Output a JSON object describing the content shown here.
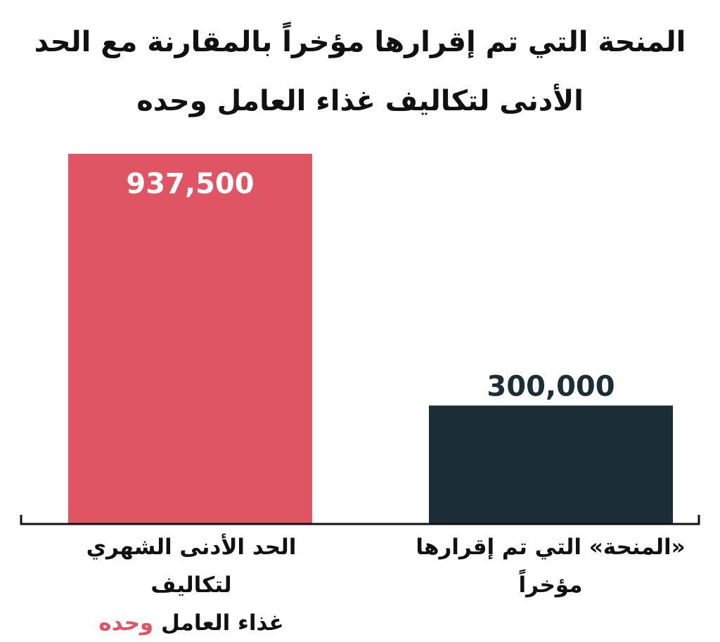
{
  "title": {
    "line1": "المنحة التي تم إقرارها مؤخراً بالمقارنة مع الحد",
    "line2": "الأدنى لتكاليف غذاء العامل وحده"
  },
  "colors": {
    "bar_min_wage": "#e05563",
    "bar_grant": "#1b2d35",
    "label_inside": "#ffffff",
    "label_outside": "#1b2d35",
    "axis": "#111111"
  },
  "chart_data": {
    "type": "bar",
    "title": "المنحة التي تم إقرارها مؤخراً بالمقارنة مع الحد الأدنى لتكاليف غذاء العامل وحده",
    "categories": [
      "الحد الأدنى الشهري لتكاليف غذاء العامل وحده",
      "«المنحة» التي تم إقرارها مؤخراً"
    ],
    "values": [
      937500,
      300000
    ],
    "value_labels": [
      "937,500",
      "300,000"
    ],
    "grid": false,
    "legend": "none",
    "ylim": [
      0,
      937500
    ]
  },
  "labels": {
    "bar1": {
      "line1": "الحد الأدنى الشهري لتكاليف",
      "line2_text": "غذاء العامل",
      "line2_accent": "وحده"
    },
    "bar2": {
      "line1": "«المنحة» التي تم إقرارها",
      "line2": "مؤخراً"
    }
  }
}
